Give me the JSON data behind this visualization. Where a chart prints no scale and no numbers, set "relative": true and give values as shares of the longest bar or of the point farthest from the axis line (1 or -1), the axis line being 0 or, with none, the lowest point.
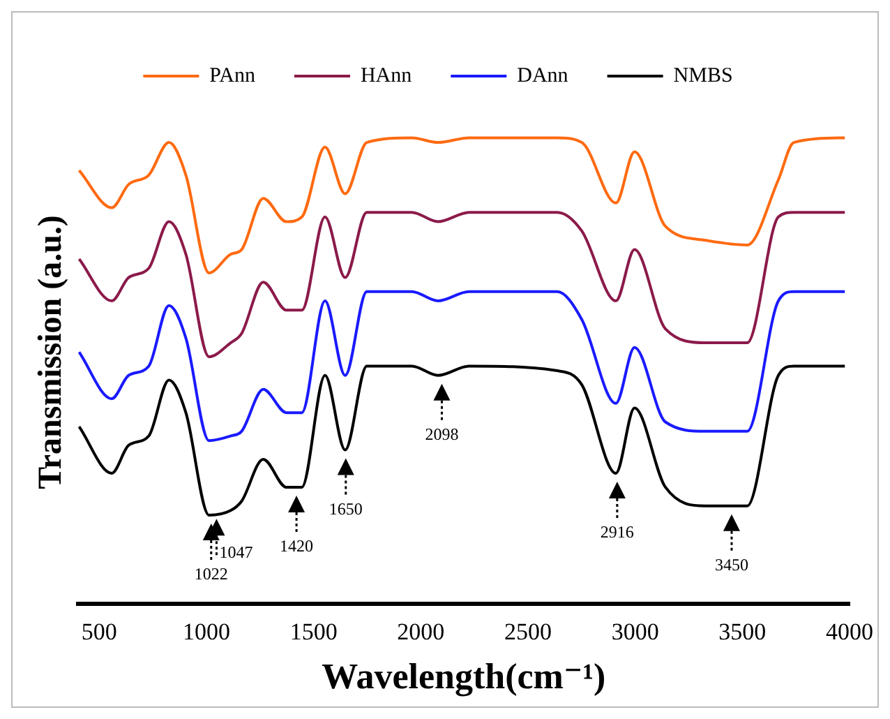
{
  "chart_data": {
    "type": "line",
    "relative": true,
    "xlabel": "Wavelength(cm⁻¹)",
    "ylabel": "Transmission (a.u.)",
    "x": [
      406,
      558,
      637,
      731,
      825,
      904,
      1012,
      1113,
      1164,
      1265,
      1373,
      1445,
      1553,
      1647,
      1748,
      1958,
      2080,
      2225,
      2636,
      2751,
      2910,
      2997,
      3141,
      3329,
      3523,
      3668,
      3740,
      3978
    ],
    "xlim": [
      400,
      4000
    ],
    "xticks": [
      500,
      1000,
      1500,
      2000,
      2500,
      3000,
      3500,
      4000
    ],
    "series": [
      {
        "name": "PAnn",
        "color": "#ff6a10",
        "values": [
          0.93,
          0.85,
          0.9,
          0.92,
          0.99,
          0.92,
          0.71,
          0.75,
          0.76,
          0.87,
          0.82,
          0.83,
          0.98,
          0.88,
          0.99,
          1.0,
          0.99,
          1.0,
          1.0,
          0.99,
          0.86,
          0.97,
          0.81,
          0.78,
          0.77,
          0.91,
          0.99,
          1.0
        ]
      },
      {
        "name": "HAnn",
        "color": "#8b1a4a",
        "values": [
          0.74,
          0.65,
          0.7,
          0.72,
          0.82,
          0.75,
          0.53,
          0.56,
          0.58,
          0.69,
          0.63,
          0.63,
          0.83,
          0.7,
          0.84,
          0.84,
          0.82,
          0.84,
          0.84,
          0.8,
          0.65,
          0.76,
          0.59,
          0.56,
          0.56,
          0.83,
          0.84,
          0.84
        ]
      },
      {
        "name": "DAnn",
        "color": "#1a1aff",
        "values": [
          0.54,
          0.44,
          0.49,
          0.51,
          0.64,
          0.57,
          0.35,
          0.36,
          0.37,
          0.46,
          0.41,
          0.41,
          0.65,
          0.49,
          0.67,
          0.67,
          0.65,
          0.67,
          0.67,
          0.61,
          0.43,
          0.55,
          0.39,
          0.37,
          0.37,
          0.65,
          0.67,
          0.67
        ]
      },
      {
        "name": "NMBS",
        "color": "#000000",
        "values": [
          0.38,
          0.28,
          0.34,
          0.36,
          0.48,
          0.41,
          0.19,
          0.2,
          0.22,
          0.31,
          0.25,
          0.25,
          0.49,
          0.33,
          0.51,
          0.51,
          0.49,
          0.51,
          0.5,
          0.47,
          0.28,
          0.42,
          0.25,
          0.21,
          0.21,
          0.49,
          0.51,
          0.51
        ]
      }
    ],
    "annotations": [
      {
        "text": "1022",
        "x": 1022,
        "y": 0.19
      },
      {
        "text": "1047",
        "x": 1047,
        "y": 0.2
      },
      {
        "text": "1420",
        "x": 1420,
        "y": 0.25
      },
      {
        "text": "1650",
        "x": 1650,
        "y": 0.33
      },
      {
        "text": "2098",
        "x": 2098,
        "y": 0.49
      },
      {
        "text": "2916",
        "x": 2916,
        "y": 0.28
      },
      {
        "text": "3450",
        "x": 3450,
        "y": 0.21
      }
    ],
    "grid": false,
    "legend": "top",
    "marker": "none",
    "line_style": "solid"
  }
}
